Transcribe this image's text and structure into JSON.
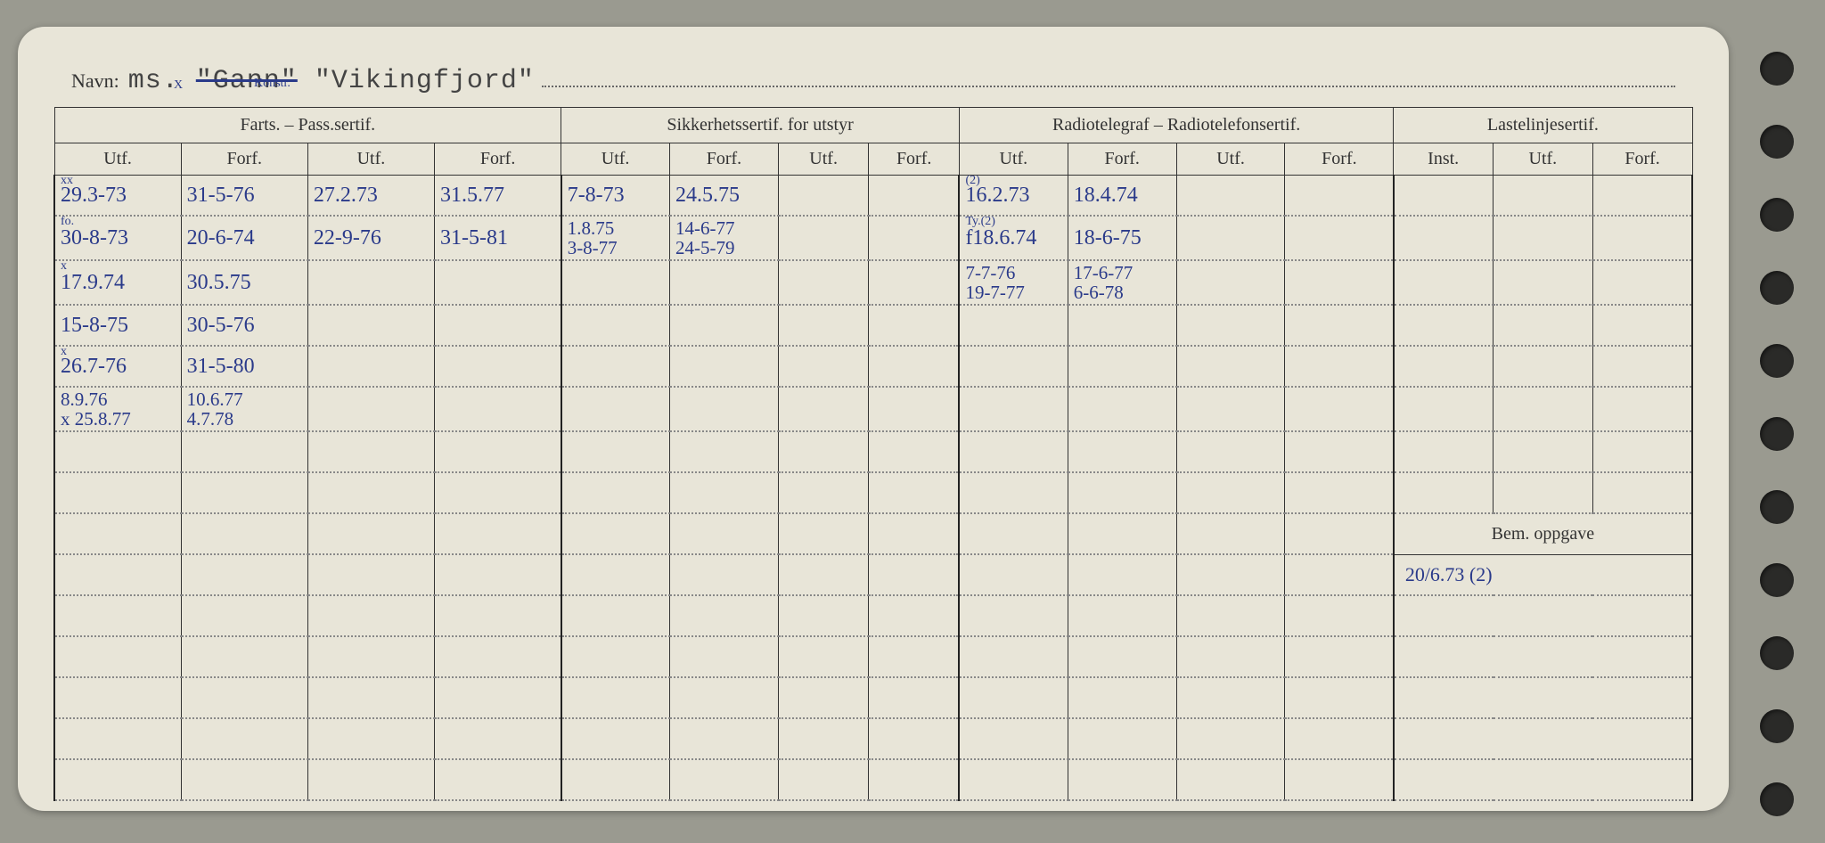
{
  "title": {
    "label": "Navn:",
    "prefix": "ms.",
    "struck": "\"Gann\"",
    "name": "\"Vikingfjord\""
  },
  "head_annotations": {
    "x_mark": "X",
    "pass_note": "Konstr."
  },
  "groups": {
    "g1": "Farts. – Pass.sertif.",
    "g2": "Sikkerhetssertif. for utstyr",
    "g3": "Radiotelegraf – Radiotelefonsertif.",
    "g4": "Lastelinjesertif."
  },
  "cols": {
    "utf": "Utf.",
    "forf": "Forf.",
    "inst": "Inst."
  },
  "bem": "Bem. oppgave",
  "rows": [
    {
      "c1": "29.3-73",
      "c1a": "xx",
      "c2": "31-5-76",
      "c3": "27.2.73",
      "c4": "31.5.77",
      "c5": "7-8-73",
      "c6": "24.5.75",
      "c7": "",
      "c8": "",
      "c9": "16.2.73",
      "c9a": "(2)",
      "c10": "18.4.74",
      "c11": "",
      "c12": "",
      "c13": "",
      "c14": "",
      "c15": ""
    },
    {
      "c1": "30-8-73",
      "c1a": "fo.",
      "c2": "20-6-74",
      "c3": "22-9-76",
      "c4": "31-5-81",
      "c5": "1.8.75\n3-8-77",
      "c6": "14-6-77\n24-5-79",
      "c7": "",
      "c8": "",
      "c9": "f18.6.74",
      "c9a": "Ty.(2)",
      "c10": "18-6-75",
      "c11": "",
      "c12": "",
      "c13": "",
      "c14": "",
      "c15": ""
    },
    {
      "c1": "17.9.74",
      "c1a": "x",
      "c2": "30.5.75",
      "c3": "",
      "c4": "",
      "c5": "",
      "c6": "",
      "c7": "",
      "c8": "",
      "c9": "7-7-76\n19-7-77",
      "c10": "17-6-77\n6-6-78",
      "c11": "",
      "c12": "",
      "c13": "",
      "c14": "",
      "c15": ""
    },
    {
      "c1": "15-8-75",
      "c2": "30-5-76",
      "c3": "",
      "c4": "",
      "c5": "",
      "c6": "",
      "c7": "",
      "c8": "",
      "c9": "",
      "c10": "",
      "c11": "",
      "c12": "",
      "c13": "",
      "c14": "",
      "c15": ""
    },
    {
      "c1": "26.7-76",
      "c1a": "x",
      "c2": "31-5-80",
      "c3": "",
      "c4": "",
      "c5": "",
      "c6": "",
      "c7": "",
      "c8": "",
      "c9": "",
      "c10": "",
      "c11": "",
      "c12": "",
      "c13": "",
      "c14": "",
      "c15": ""
    },
    {
      "c1": "8.9.76\nx 25.8.77",
      "c2": "10.6.77\n4.7.78",
      "c3": "",
      "c4": "",
      "c5": "",
      "c6": "",
      "c7": "",
      "c8": "",
      "c9": "",
      "c10": "",
      "c11": "",
      "c12": "",
      "c13": "",
      "c14": "",
      "c15": ""
    },
    {
      "c1": "",
      "c2": "",
      "c3": "",
      "c4": "",
      "c5": "",
      "c6": "",
      "c7": "",
      "c8": "",
      "c9": "",
      "c10": "",
      "c11": "",
      "c12": "",
      "c13": "",
      "c14": "",
      "c15": ""
    },
    {
      "c1": "",
      "c2": "",
      "c3": "",
      "c4": "",
      "c5": "",
      "c6": "",
      "c7": "",
      "c8": "",
      "c9": "",
      "c10": "",
      "c11": "",
      "c12": "",
      "c13": "",
      "c14": "",
      "c15": ""
    }
  ],
  "bem_row": {
    "text": "20/6.73 (2)"
  },
  "blank_rows": 5,
  "holes": [
    58,
    140,
    222,
    304,
    386,
    468,
    550,
    632,
    714,
    796,
    878
  ]
}
